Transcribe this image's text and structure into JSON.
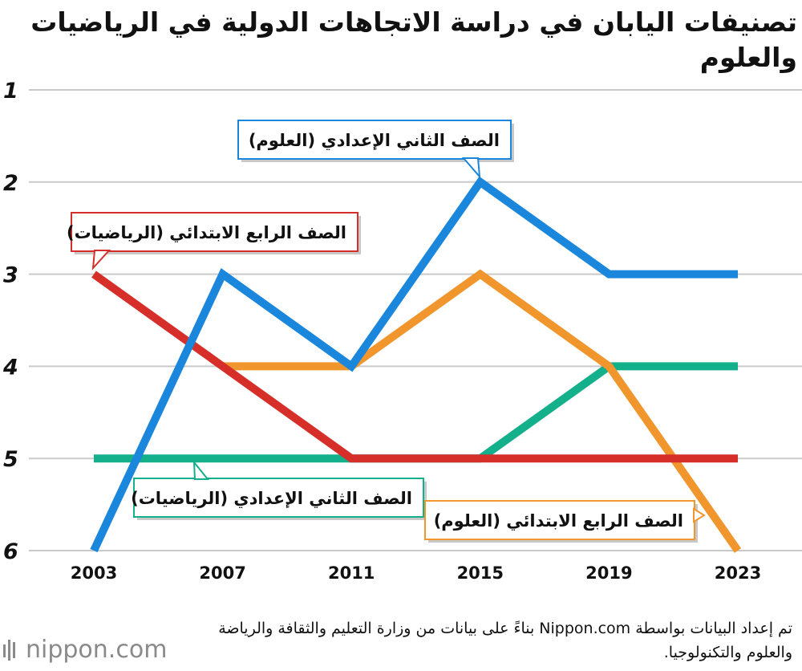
{
  "title": "تصنيفات اليابان في دراسة الاتجاهات الدولية في الرياضيات والعلوم",
  "source": "تم إعداد البيانات بواسطة Nippon.com بناءً على بيانات من وزارة التعليم والثقافة والرياضة والعلوم والتكنولوجيا.",
  "logo": "nippon.com",
  "colors": {
    "grade8_science": "#1a86dc",
    "grade4_math": "#d62f2a",
    "grade8_math": "#13b08b",
    "grade4_science": "#f0962d"
  },
  "chart_data": {
    "type": "line",
    "x": [
      2003,
      2007,
      2011,
      2015,
      2019,
      2023
    ],
    "ylim": [
      1,
      6
    ],
    "y_inverted": true,
    "yticks": [
      1,
      2,
      3,
      4,
      5,
      6
    ],
    "grid": true,
    "series": [
      {
        "name": "الصف الثاني الإعدادي (العلوم)",
        "color": "#1a86dc",
        "values": [
          6,
          3,
          4,
          2,
          3,
          3
        ]
      },
      {
        "name": "الصف الرابع الابتدائي (الرياضيات)",
        "color": "#d62f2a",
        "values": [
          3,
          4,
          5,
          5,
          5,
          5
        ]
      },
      {
        "name": "الصف الثاني الإعدادي (الرياضيات)",
        "color": "#13b08b",
        "values": [
          5,
          5,
          5,
          5,
          4,
          4
        ]
      },
      {
        "name": "الصف الرابع الابتدائي (العلوم)",
        "color": "#f0962d",
        "values": [
          null,
          4,
          4,
          3,
          4,
          6
        ]
      }
    ]
  }
}
